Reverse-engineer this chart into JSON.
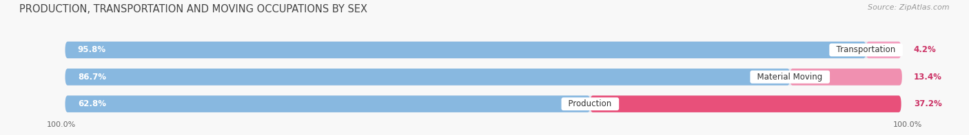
{
  "title": "PRODUCTION, TRANSPORTATION AND MOVING OCCUPATIONS BY SEX",
  "source": "Source: ZipAtlas.com",
  "categories": [
    "Transportation",
    "Material Moving",
    "Production"
  ],
  "male_pct": [
    95.8,
    86.7,
    62.8
  ],
  "female_pct": [
    4.2,
    13.4,
    37.2
  ],
  "male_color": "#88b8e0",
  "female_color_transport": "#f4a0c0",
  "female_color_material": "#f090b0",
  "female_color_production": "#e8507a",
  "female_colors": [
    "#f4a0c0",
    "#f090b0",
    "#e8507a"
  ],
  "bar_track_color": "#e4e4ee",
  "title_fontsize": 10.5,
  "source_fontsize": 8,
  "bar_label_fontsize": 8.5,
  "cat_label_fontsize": 8.5,
  "legend_fontsize": 8.5,
  "axis_label_fontsize": 8,
  "left_label": "100.0%",
  "right_label": "100.0%",
  "bg_color": "#f8f8f8"
}
